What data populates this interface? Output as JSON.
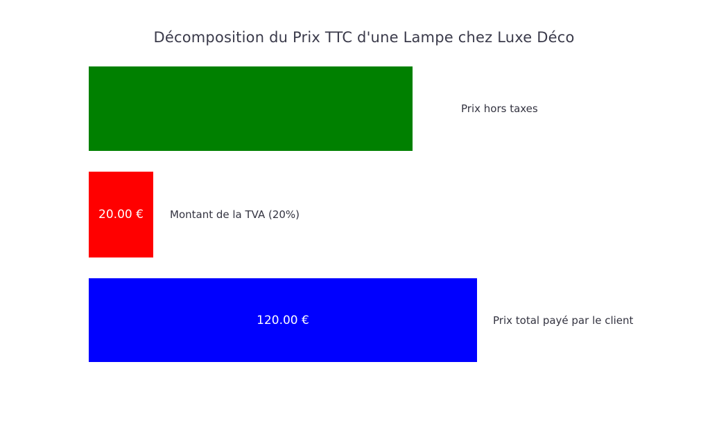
{
  "chart_data": {
    "type": "bar",
    "orientation": "horizontal",
    "title": "Décomposition du Prix TTC d'une Lampe chez Luxe Déco",
    "categories": [
      "Prix hors taxes",
      "Montant de la TVA (20%)",
      "Prix total payé par le client"
    ],
    "values": [
      100,
      20,
      120
    ],
    "value_labels": [
      "",
      "20.00 €",
      "120.00 €"
    ],
    "colors": [
      "#008000",
      "#ff0000",
      "#0000ff"
    ],
    "xlim": [
      0,
      120
    ],
    "grid": false,
    "legend": "none",
    "axes": "hidden",
    "text_color": "#3a3a4a",
    "value_label_color": "#ffffff"
  }
}
